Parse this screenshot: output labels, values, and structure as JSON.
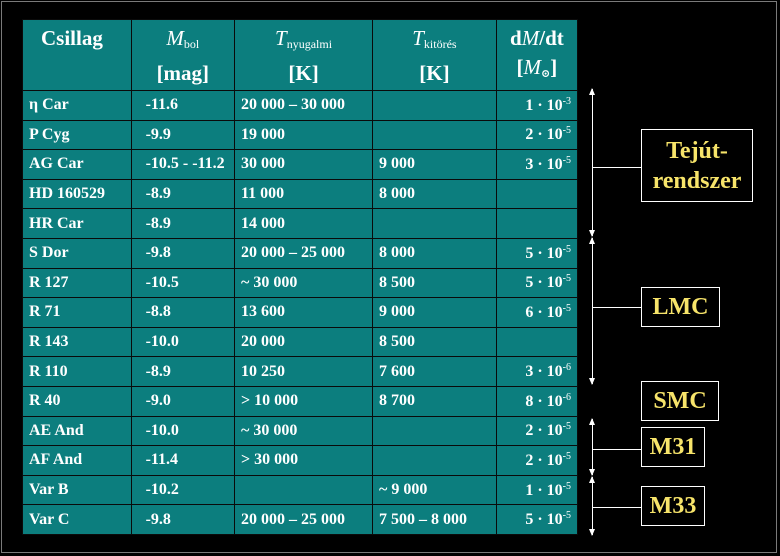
{
  "table": {
    "headers": {
      "name": "Csillag",
      "mbol_symbol": "M",
      "mbol_sub": "bol",
      "mbol_unit": "[mag]",
      "tq_symbol": "T",
      "tq_sub": "nyugalmi",
      "tq_unit": "[K]",
      "te_symbol": "T",
      "te_sub": "kitörés",
      "te_unit": "[K]",
      "mdot_d1": "d",
      "mdot_M": "M",
      "mdot_dt": "/dt",
      "mdot_unit_open": "[",
      "mdot_unit_M": "M",
      "mdot_unit_sun": "⊙",
      "mdot_unit_close": "]"
    },
    "rows": [
      {
        "name": "η Car",
        "mbol": "-11.6",
        "t_quiet": "20 000 – 30 000",
        "t_out": "",
        "mdot_m": "1 · 10",
        "mdot_e": "-3"
      },
      {
        "name": "P Cyg",
        "mbol": "-9.9",
        "t_quiet": "19 000",
        "t_out": "",
        "mdot_m": "2 · 10",
        "mdot_e": "-5"
      },
      {
        "name": "AG Car",
        "mbol": "-10.5 - -11.2",
        "t_quiet": "30 000",
        "t_out": "9 000",
        "mdot_m": "3 · 10",
        "mdot_e": "-5"
      },
      {
        "name": "HD 160529",
        "mbol": "-8.9",
        "t_quiet": "11 000",
        "t_out": "8 000",
        "mdot_m": "",
        "mdot_e": ""
      },
      {
        "name": "HR Car",
        "mbol": "-8.9",
        "t_quiet": "14 000",
        "t_out": "",
        "mdot_m": "",
        "mdot_e": ""
      },
      {
        "name": "S Dor",
        "mbol": "-9.8",
        "t_quiet": "20 000 – 25 000",
        "t_out": "8 000",
        "mdot_m": "5 · 10",
        "mdot_e": "-5"
      },
      {
        "name": "R 127",
        "mbol": "-10.5",
        "t_quiet": "~ 30 000",
        "t_out": "8 500",
        "mdot_m": "5 · 10",
        "mdot_e": "-5"
      },
      {
        "name": "R 71",
        "mbol": "-8.8",
        "t_quiet": "13 600",
        "t_out": "9 000",
        "mdot_m": "6 · 10",
        "mdot_e": "-5"
      },
      {
        "name": "R 143",
        "mbol": "-10.0",
        "t_quiet": "20 000",
        "t_out": "8 500",
        "mdot_m": "",
        "mdot_e": ""
      },
      {
        "name": "R 110",
        "mbol": "-8.9",
        "t_quiet": "10 250",
        "t_out": "7 600",
        "mdot_m": "3 · 10",
        "mdot_e": "-6"
      },
      {
        "name": "R 40",
        "mbol": "-9.0",
        "t_quiet": "> 10 000",
        "t_out": "8 700",
        "mdot_m": "8 · 10",
        "mdot_e": "-6"
      },
      {
        "name": "AE And",
        "mbol": "-10.0",
        "t_quiet": "~ 30 000",
        "t_out": "",
        "mdot_m": "2 · 10",
        "mdot_e": "-5"
      },
      {
        "name": "AF And",
        "mbol": "-11.4",
        "t_quiet": "> 30 000",
        "t_out": "",
        "mdot_m": "2 · 10",
        "mdot_e": "-5"
      },
      {
        "name": "Var B",
        "mbol": "-10.2",
        "t_quiet": "",
        "t_out": "~ 9 000",
        "mdot_m": "1 · 10",
        "mdot_e": "-5"
      },
      {
        "name": "Var C",
        "mbol": "-9.8",
        "t_quiet": "20 000 – 25 000",
        "t_out": "7 500 – 8 000",
        "mdot_m": "5 · 10",
        "mdot_e": "-5"
      }
    ]
  },
  "groups": {
    "milky_way": "Tejút-rendszer",
    "milky_way_l1": "Tejút-",
    "milky_way_l2": "rendszer",
    "lmc": "LMC",
    "smc": "SMC",
    "m31": "M31",
    "m33": "M33"
  },
  "colors": {
    "table_bg": "#0c7e7e",
    "page_bg": "#000000",
    "label_text": "#f7e46a",
    "text": "#ffffff"
  }
}
